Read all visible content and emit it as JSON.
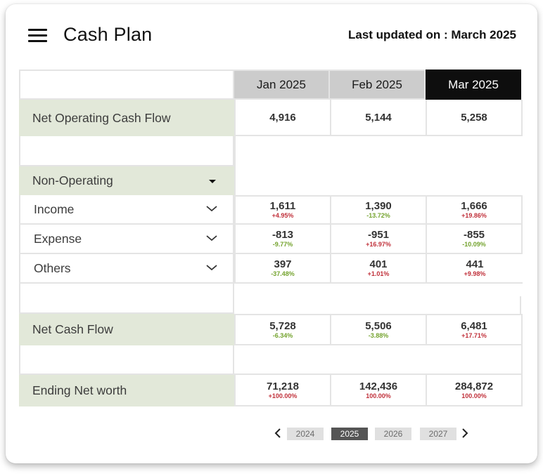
{
  "header": {
    "title": "Cash Plan",
    "last_updated": "Last updated on : March 2025"
  },
  "months": [
    {
      "label": "Jan 2025",
      "active": false
    },
    {
      "label": "Feb 2025",
      "active": false
    },
    {
      "label": "Mar 2025",
      "active": true
    }
  ],
  "rows": {
    "net_operating": {
      "label": "Net Operating Cash Flow",
      "values": [
        {
          "num": "4,916"
        },
        {
          "num": "5,144"
        },
        {
          "num": "5,258"
        }
      ]
    },
    "non_operating": {
      "label": "Non-Operating"
    },
    "income": {
      "label": "Income",
      "values": [
        {
          "num": "1,611",
          "pct": "+4.95%"
        },
        {
          "num": "1,390",
          "pct": "-13.72%"
        },
        {
          "num": "1,666",
          "pct": "+19.86%"
        }
      ]
    },
    "expense": {
      "label": "Expense",
      "values": [
        {
          "num": "-813",
          "pct": "-9.77%"
        },
        {
          "num": "-951",
          "pct": "+16.97%"
        },
        {
          "num": "-855",
          "pct": "-10.09%"
        }
      ]
    },
    "others": {
      "label": "Others",
      "values": [
        {
          "num": "397",
          "pct": "-37.48%"
        },
        {
          "num": "401",
          "pct": "+1.01%"
        },
        {
          "num": "441",
          "pct": "+9.98%"
        }
      ]
    },
    "net_cash_flow": {
      "label": "Net Cash Flow",
      "values": [
        {
          "num": "5,728",
          "pct": "-6.34%"
        },
        {
          "num": "5,506",
          "pct": "-3.88%"
        },
        {
          "num": "6,481",
          "pct": "+17.71%"
        }
      ]
    },
    "ending_net_worth": {
      "label": "Ending Net worth",
      "values": [
        {
          "num": "71,218",
          "pct": "+100.00%"
        },
        {
          "num": "142,436",
          "pct": "100.00%"
        },
        {
          "num": "284,872",
          "pct": "100.00%"
        }
      ]
    }
  },
  "pager": {
    "years": [
      "2024",
      "2025",
      "2026",
      "2027"
    ],
    "active_year": "2025"
  },
  "colors": {
    "label_bg": "#e2e8d9",
    "header_bg": "#cccccc",
    "header_active_bg": "#0e0e0e",
    "pct_up": "#c0303a",
    "pct_down": "#74a32e"
  }
}
